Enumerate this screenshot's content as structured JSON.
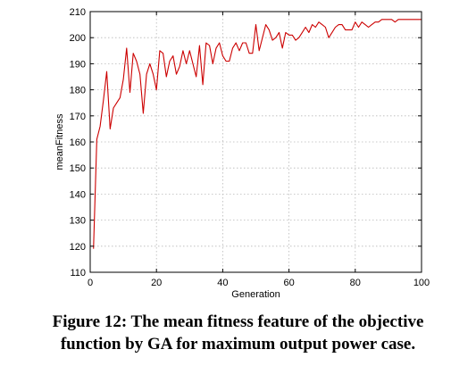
{
  "chart_data": {
    "type": "line",
    "xlabel": "Generation",
    "ylabel": "meanFitness",
    "xlim": [
      0,
      100
    ],
    "ylim": [
      110,
      210
    ],
    "xticks": [
      0,
      20,
      40,
      60,
      80,
      100
    ],
    "yticks": [
      110,
      120,
      130,
      140,
      150,
      160,
      170,
      180,
      190,
      200,
      210
    ],
    "grid": true,
    "line_color": "#cc0000",
    "series": [
      {
        "x": [
          1,
          2,
          3,
          4,
          5,
          6,
          7,
          8,
          9,
          10,
          11,
          12,
          13,
          14,
          15,
          16,
          17,
          18,
          19,
          20,
          21,
          22,
          23,
          24,
          25,
          26,
          27,
          28,
          29,
          30,
          31,
          32,
          33,
          34,
          35,
          36,
          37,
          38,
          39,
          40,
          41,
          42,
          43,
          44,
          45,
          46,
          47,
          48,
          49,
          50,
          51,
          52,
          53,
          54,
          55,
          56,
          57,
          58,
          59,
          60,
          61,
          62,
          63,
          64,
          65,
          66,
          67,
          68,
          69,
          70,
          71,
          72,
          73,
          74,
          75,
          76,
          77,
          78,
          79,
          80,
          81,
          82,
          83,
          84,
          85,
          86,
          87,
          88,
          89,
          90,
          91,
          92,
          93,
          94,
          95,
          96,
          97,
          98,
          99,
          100
        ],
        "values": [
          119,
          161,
          166,
          176,
          187,
          165,
          173,
          175,
          177,
          184,
          196,
          179,
          194,
          191,
          186,
          171,
          186,
          190,
          186,
          180,
          195,
          194,
          185,
          191,
          193,
          186,
          189,
          195,
          190,
          195,
          190,
          185,
          197,
          182,
          198,
          197,
          190,
          196,
          198,
          193,
          191,
          191,
          196,
          198,
          195,
          198,
          198,
          194,
          194,
          205,
          195,
          200,
          205,
          203,
          199,
          200,
          202,
          196,
          202,
          201,
          201,
          199,
          200,
          202,
          204,
          202,
          205,
          204,
          206,
          205,
          204,
          200,
          202,
          204,
          205,
          205,
          203,
          203,
          203,
          206,
          204,
          206,
          205,
          204,
          205,
          206,
          206,
          207,
          207,
          207,
          207,
          206,
          207,
          207,
          207,
          207,
          207,
          207,
          207,
          207
        ]
      }
    ]
  },
  "caption": {
    "line1": "Figure 12: The mean fitness feature of the objective",
    "line2": "function by GA for maximum  output power case."
  }
}
